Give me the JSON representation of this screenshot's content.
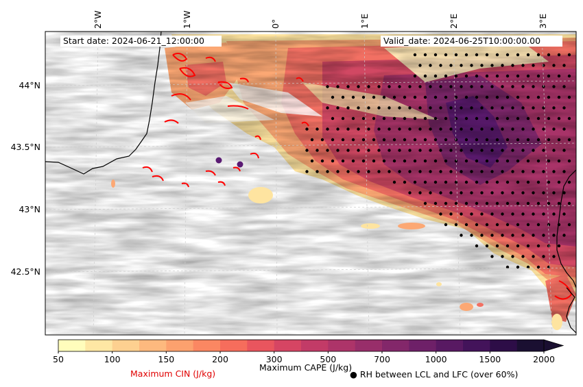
{
  "annotations": {
    "start_date": "Start date: 2024-06-21_12:00:00",
    "valid_date": "Valid_date: 2024-06-25T10:00:00.00"
  },
  "longitude_labels": [
    "2°W",
    "1°W",
    "0°",
    "1°E",
    "2°E",
    "3°E"
  ],
  "latitude_labels": [
    "44°N",
    "43.5°N",
    "43°N",
    "42.5°N"
  ],
  "colorbar": {
    "tick_labels": [
      "50",
      "100",
      "150",
      "200",
      "300",
      "500",
      "700",
      "1000",
      "1500",
      "2000"
    ],
    "colors": [
      "#fffdbc",
      "#fee7a4",
      "#fdd090",
      "#fdb97e",
      "#fca16e",
      "#fb8762",
      "#f66d5c",
      "#e9555e",
      "#d64563",
      "#c23b67",
      "#ad3469",
      "#982e6a",
      "#83276a",
      "#6e2068",
      "#581962",
      "#43135a",
      "#2d0d47",
      "#1a0f31"
    ],
    "extend_color": "#1a0f31"
  },
  "legend": {
    "cin_label": "Maximum CIN (J/kg)",
    "cape_label": "Maximum CAPE (J/kg)",
    "rh_label": "● RH between LCL and LFC (over 60%)"
  },
  "colors": {
    "cin_contour": "#ff0000",
    "coastline": "#000000",
    "gridline": "#cccccc",
    "marker": "#5a1a73"
  }
}
